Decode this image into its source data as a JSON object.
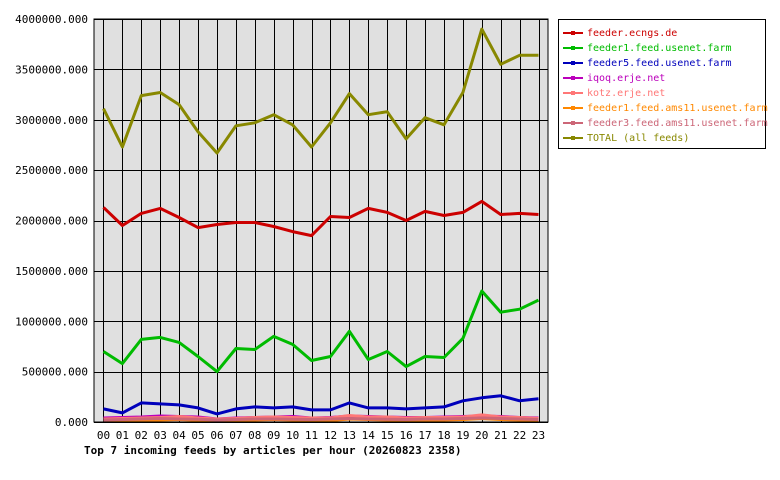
{
  "chart_data": {
    "type": "line",
    "title": "Top 7 incoming feeds by articles per hour (20260823 2358)",
    "x": [
      "00",
      "01",
      "02",
      "03",
      "04",
      "05",
      "06",
      "07",
      "08",
      "09",
      "10",
      "11",
      "12",
      "13",
      "14",
      "15",
      "16",
      "17",
      "18",
      "19",
      "20",
      "21",
      "22",
      "23"
    ],
    "ylim": [
      0,
      4000000
    ],
    "y_ticks": [
      {
        "value": 0,
        "label": "0.000"
      },
      {
        "value": 500000,
        "label": "500000.000"
      },
      {
        "value": 1000000,
        "label": "1000000.000"
      },
      {
        "value": 1500000,
        "label": "1500000.000"
      },
      {
        "value": 2000000,
        "label": "2000000.000"
      },
      {
        "value": 2500000,
        "label": "2500000.000"
      },
      {
        "value": 3000000,
        "label": "3000000.000"
      },
      {
        "value": 3500000,
        "label": "3500000.000"
      },
      {
        "value": 4000000,
        "label": "4000000.000"
      }
    ],
    "grid": true,
    "legend_position": "right",
    "series": [
      {
        "name": "feeder.ecngs.de",
        "color": "#cc0000",
        "values": [
          2130000,
          1950000,
          2070000,
          2120000,
          2030000,
          1930000,
          1960000,
          1980000,
          1980000,
          1940000,
          1890000,
          1850000,
          2040000,
          2030000,
          2120000,
          2080000,
          2000000,
          2090000,
          2050000,
          2080000,
          2190000,
          2060000,
          2070000,
          2060000
        ]
      },
      {
        "name": "feeder1.feed.usenet.farm",
        "color": "#00bb00",
        "values": [
          700000,
          580000,
          820000,
          840000,
          790000,
          650000,
          500000,
          730000,
          720000,
          850000,
          770000,
          610000,
          650000,
          900000,
          620000,
          700000,
          550000,
          650000,
          640000,
          830000,
          1300000,
          1090000,
          1120000,
          1210000
        ]
      },
      {
        "name": "feeder5.feed.usenet.farm",
        "color": "#0000bb",
        "values": [
          130000,
          90000,
          190000,
          180000,
          170000,
          140000,
          80000,
          130000,
          150000,
          140000,
          150000,
          120000,
          120000,
          190000,
          140000,
          140000,
          130000,
          140000,
          150000,
          210000,
          240000,
          260000,
          210000,
          230000
        ]
      },
      {
        "name": "iqoq.erje.net",
        "color": "#bb00bb",
        "values": [
          40000,
          45000,
          50000,
          60000,
          55000,
          50000,
          30000,
          40000,
          45000,
          50000,
          55000,
          40000,
          45000,
          60000,
          55000,
          50000,
          45000,
          45000,
          50000,
          55000,
          60000,
          55000,
          45000,
          40000
        ]
      },
      {
        "name": "kotz.erje.net",
        "color": "#ff7777",
        "values": [
          30000,
          35000,
          40000,
          45000,
          55000,
          40000,
          30000,
          35000,
          45000,
          50000,
          45000,
          40000,
          40000,
          65000,
          50000,
          50000,
          40000,
          45000,
          45000,
          50000,
          70000,
          50000,
          45000,
          35000
        ]
      },
      {
        "name": "feeder1.feed.ams11.usenet.farm",
        "color": "#ff8800",
        "values": [
          10000,
          12000,
          15000,
          20000,
          25000,
          18000,
          10000,
          15000,
          20000,
          25000,
          20000,
          15000,
          15000,
          30000,
          25000,
          20000,
          15000,
          20000,
          20000,
          25000,
          35000,
          25000,
          20000,
          15000
        ]
      },
      {
        "name": "feeder3.feed.ams11.usenet.farm",
        "color": "#cc6677",
        "values": [
          20000,
          25000,
          30000,
          35000,
          30000,
          28000,
          20000,
          25000,
          30000,
          30000,
          28000,
          25000,
          30000,
          35000,
          30000,
          28000,
          25000,
          30000,
          30000,
          35000,
          40000,
          35000,
          30000,
          25000
        ]
      },
      {
        "name": "TOTAL (all feeds)",
        "color": "#888800",
        "values": [
          3110000,
          2730000,
          3240000,
          3270000,
          3150000,
          2880000,
          2670000,
          2940000,
          2970000,
          3050000,
          2950000,
          2730000,
          2970000,
          3260000,
          3050000,
          3080000,
          2810000,
          3020000,
          2950000,
          3270000,
          3900000,
          3550000,
          3640000,
          3640000
        ]
      }
    ]
  },
  "caption": "Top 7 incoming feeds by articles per hour (20260823 2358)",
  "legend": {
    "items": [
      {
        "label": "feeder.ecngs.de",
        "color": "#cc0000"
      },
      {
        "label": "feeder1.feed.usenet.farm",
        "color": "#00bb00"
      },
      {
        "label": "feeder5.feed.usenet.farm",
        "color": "#0000bb"
      },
      {
        "label": "iqoq.erje.net",
        "color": "#bb00bb"
      },
      {
        "label": "kotz.erje.net",
        "color": "#ff7777"
      },
      {
        "label": "feeder1.feed.ams11.usenet.farm",
        "color": "#ff8800"
      },
      {
        "label": "feeder3.feed.ams11.usenet.farm",
        "color": "#cc6677"
      },
      {
        "label": "TOTAL (all feeds)",
        "color": "#888800"
      }
    ]
  },
  "colors": {
    "plot_background": "#e0e0e0",
    "grid": "#000000",
    "tick_text": "#000000"
  }
}
